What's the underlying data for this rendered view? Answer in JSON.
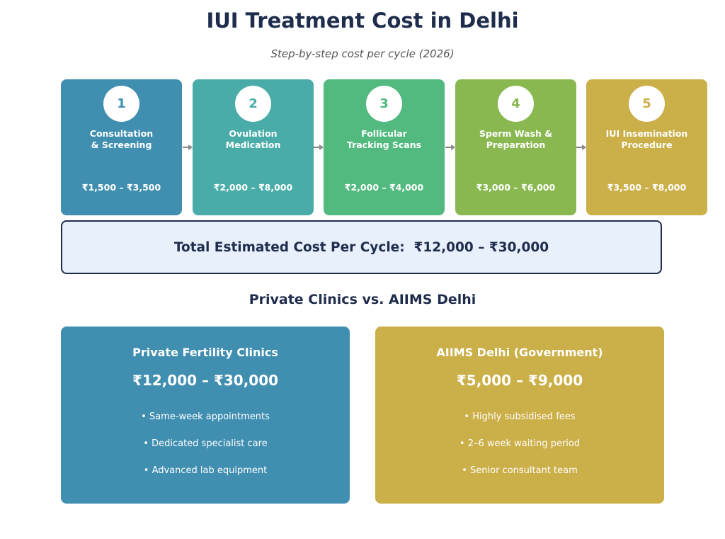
{
  "header": {
    "title": "IUI Treatment Cost in Delhi",
    "subtitle": "Step-by-step cost per cycle (2026)"
  },
  "steps": [
    {
      "number": "1",
      "label": "Consultation\n& Screening",
      "price": "₹1,500 – ₹3,500",
      "color": "#418fb0"
    },
    {
      "number": "2",
      "label": "Ovulation\nMedication",
      "price": "₹2,000 – ₹8,000",
      "color": "#4aaca8"
    },
    {
      "number": "3",
      "label": "Follicular\nTracking Scans",
      "price": "₹2,000 – ₹4,000",
      "color": "#52b97f"
    },
    {
      "number": "4",
      "label": "Sperm Wash &\nPreparation",
      "price": "₹3,000 – ₹6,000",
      "color": "#8ab850"
    },
    {
      "number": "5",
      "label": "IUI Insemination\nProcedure",
      "price": "₹3,500 – ₹8,000",
      "color": "#cbaf48"
    }
  ],
  "total": {
    "label": "Total Estimated Cost Per Cycle:",
    "value": "₹12,000 – ₹30,000"
  },
  "comparison": {
    "title": "Private Clinics vs. AIIMS Delhi",
    "cards": [
      {
        "title": "Private Fertility Clinics",
        "price": "₹12,000 – ₹30,000",
        "points": [
          "• Same-week appointments",
          "• Dedicated specialist care",
          "• Advanced lab equipment"
        ],
        "color": "#418fb0"
      },
      {
        "title": "AIIMS Delhi (Government)",
        "price": "₹5,000 – ₹9,000",
        "points": [
          "• Highly subsidised fees",
          "• 2–6 week waiting period",
          "• Senior consultant team"
        ],
        "color": "#cbaf48"
      }
    ]
  },
  "colors": {
    "navy": "#1f2d4d",
    "total_bg": "#e8f0fb",
    "arrow": "#888888"
  },
  "icons": [
    "arrow-right-icon"
  ]
}
